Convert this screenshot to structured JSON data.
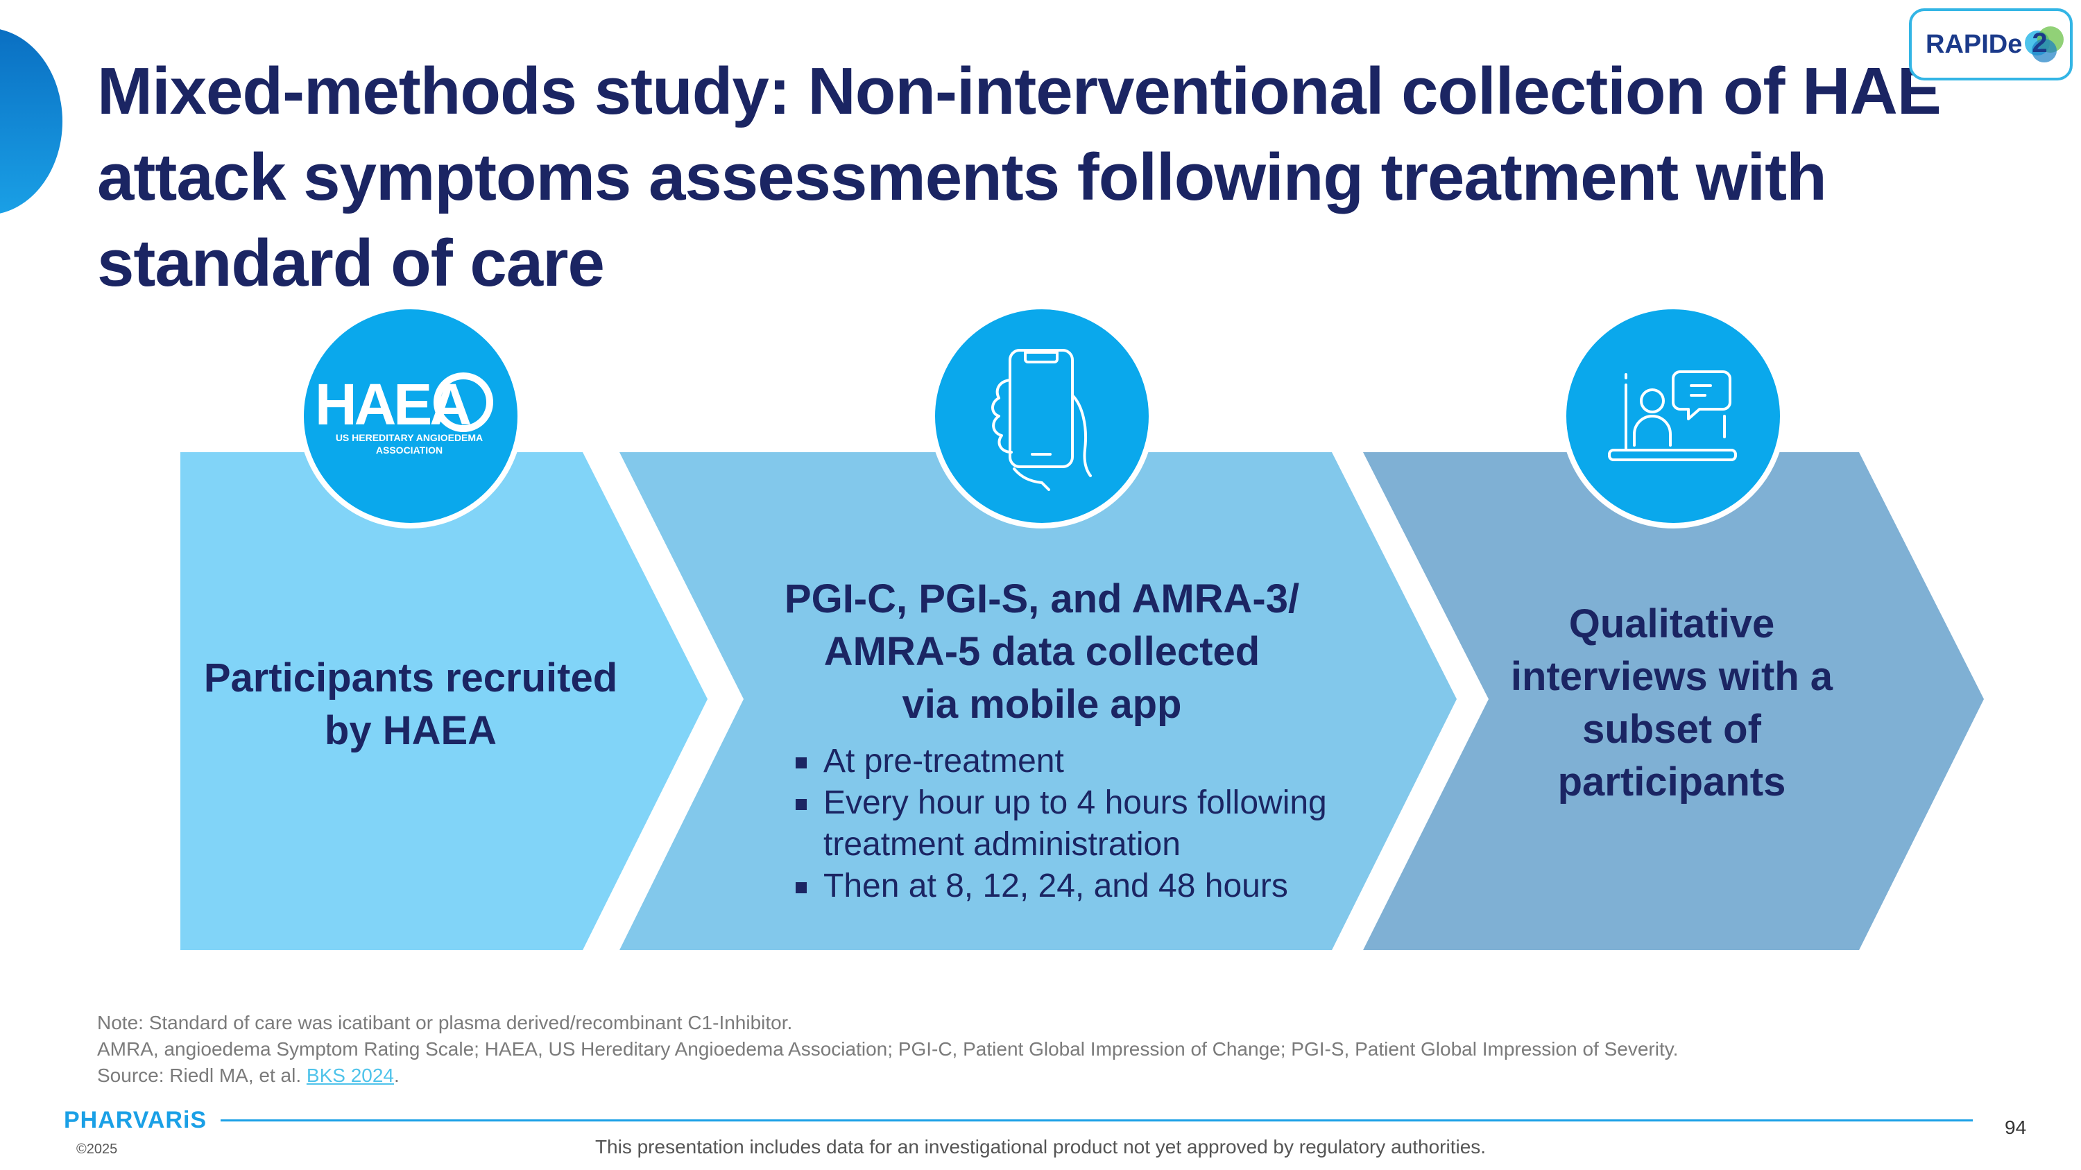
{
  "title": "Mixed-methods study: Non-interventional collection of HAE attack symptoms assessments following treatment with standard of care",
  "badge": {
    "text": "RAPIDe",
    "number": "2"
  },
  "steps": [
    {
      "icon": "haea-logo",
      "logo_text": "HAEA",
      "logo_caption_1": "US HEREDITARY ANGIOEDEMA",
      "logo_caption_2": "ASSOCIATION",
      "heading_lines": [
        "Participants recruited",
        "by HAEA"
      ],
      "color": "#81d4f8"
    },
    {
      "icon": "smartphone-icon",
      "heading_lines": [
        "PGI-C, PGI-S, and AMRA-3/",
        "AMRA-5 data collected",
        "via mobile app"
      ],
      "bullets": [
        "At pre-treatment",
        "Every hour up to 4 hours following treatment administration",
        "Then at 8, 12, 24, and 48 hours"
      ],
      "color": "#82c8eb"
    },
    {
      "icon": "video-interview-icon",
      "heading_lines": [
        "Qualitative",
        "interviews with a",
        "subset of",
        "participants"
      ],
      "color": "#7fb0d4"
    }
  ],
  "circle_color": "#0aa8ec",
  "notes": {
    "line1": "Note: Standard of care was icatibant or plasma derived/recombinant C1-Inhibitor.",
    "line2": "AMRA, angioedema Symptom Rating Scale; HAEA, US Hereditary Angioedema Association; PGI-C, Patient Global Impression of Change; PGI-S, Patient Global Impression of Severity.",
    "line3_prefix": "Source: Riedl MA, et al. ",
    "line3_link": "BKS 2024",
    "line3_suffix": "."
  },
  "footer": {
    "logo": "PHARVARiS",
    "copyright": "©2025",
    "disclaimer": "This presentation includes data for an investigational product not yet approved by regulatory authorities.",
    "page_number": "94"
  }
}
